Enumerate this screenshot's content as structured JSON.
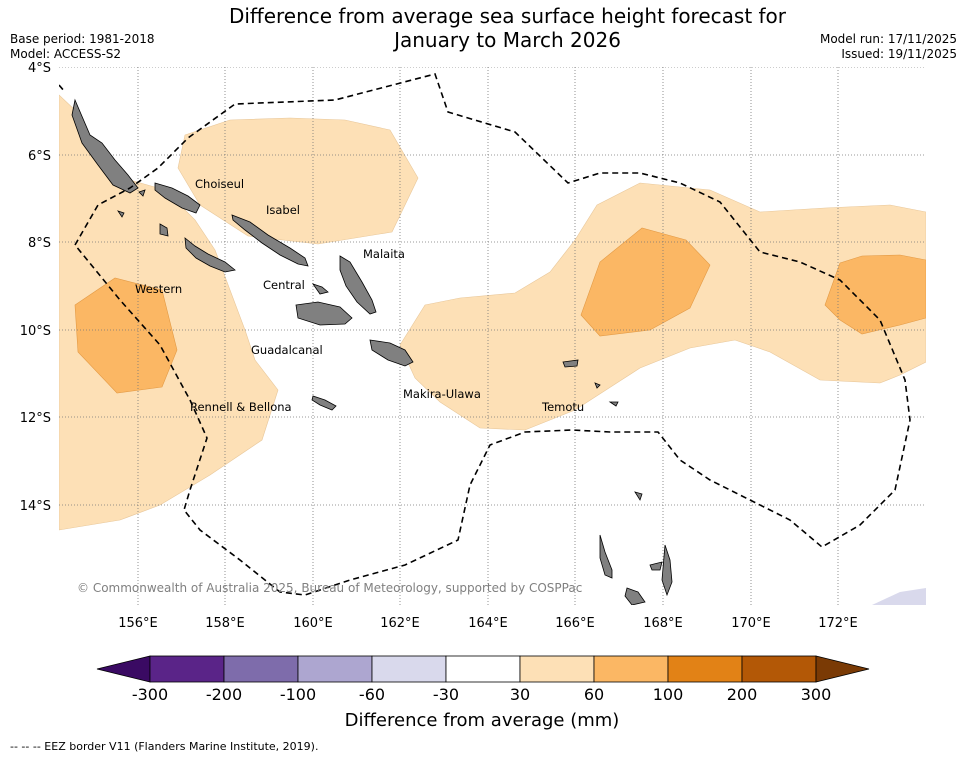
{
  "title_line1": "Difference from average sea surface height forecast for",
  "title_line2": "January to March 2026",
  "base_period": "Base period: 1981-2018",
  "model": "Model: ACCESS-S2",
  "model_run": "Model run: 17/11/2025",
  "issued": "Issued: 19/11/2025",
  "lat_labels": [
    "4°S",
    "6°S",
    "8°S",
    "10°S",
    "12°S",
    "14°S"
  ],
  "lon_labels": [
    "156°E",
    "158°E",
    "160°E",
    "162°E",
    "164°E",
    "166°E",
    "168°E",
    "170°E",
    "172°E"
  ],
  "regions": {
    "choiseul": "Choiseul",
    "isabel": "Isabel",
    "malaita": "Malaita",
    "western": "Western",
    "central": "Central",
    "guadalcanal": "Guadalcanal",
    "makira": "Makira-Ulawa",
    "rennell": "Rennell & Bellona",
    "temotu": "Temotu"
  },
  "copyright": "© Commonwealth of Australia 2025, Bureau of Meteorology, supported by COSPPac",
  "colorbar": {
    "ticks": [
      "-300",
      "-200",
      "-100",
      "-60",
      "-30",
      "30",
      "60",
      "100",
      "200",
      "300"
    ],
    "colors": [
      "#5a2488",
      "#7e6cab",
      "#ada6d0",
      "#d9d9ec",
      "#ffffff",
      "#fde0b6",
      "#fbb764",
      "#e28216",
      "#b35806"
    ],
    "extend_low": "#3a0a63",
    "extend_high": "#7a3a05",
    "label": "Difference from average (mm)"
  },
  "footnote": "--  --  -- EEZ border V11 (Flanders Marine Institute, 2019)."
}
